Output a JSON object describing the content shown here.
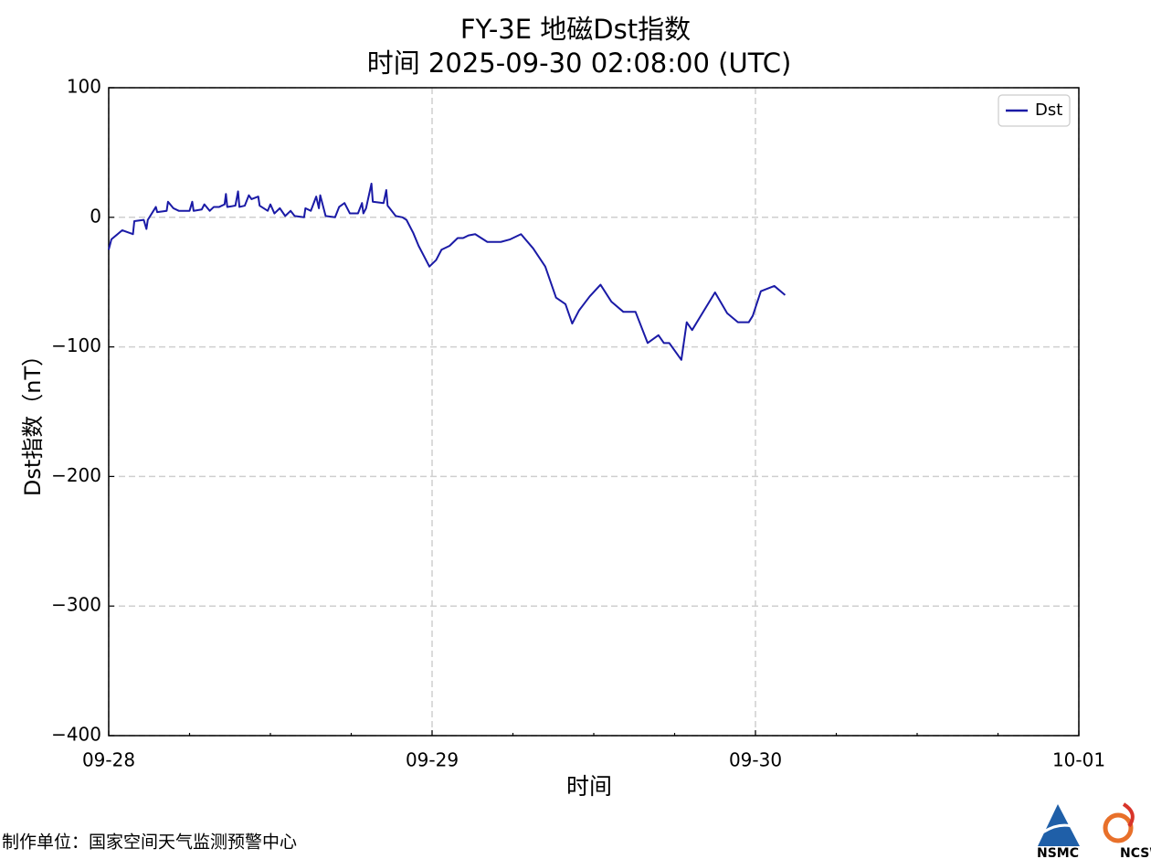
{
  "chart_data": {
    "type": "line",
    "title": "FY-3E 地磁Dst指数",
    "subtitle": "时间 2025-09-30 02:08:00 (UTC)",
    "x_label": "时间",
    "y_label": "Dst指数（nT）",
    "x": [
      0,
      0.2,
      1.0,
      1.8,
      1.9,
      2.6,
      2.8,
      2.9,
      3.5,
      3.6,
      4.3,
      4.4,
      4.8,
      5.2,
      6.0,
      6.2,
      6.3,
      6.9,
      7.1,
      7.5,
      7.8,
      8.2,
      8.6,
      8.7,
      8.8,
      9.4,
      9.6,
      9.7,
      10.1,
      10.4,
      10.6,
      11.1,
      11.2,
      11.8,
      12.0,
      12.3,
      12.7,
      13.1,
      13.5,
      13.8,
      14.5,
      14.6,
      15.0,
      15.4,
      15.6,
      15.7,
      16.1,
      16.8,
      17.1,
      17.5,
      17.9,
      18.5,
      18.8,
      18.9,
      19.1,
      19.5,
      19.6,
      20.4,
      20.6,
      20.7,
      21.3,
      21.8,
      22.1,
      22.6,
      23.0,
      23.4,
      23.8,
      24.3,
      24.7,
      25.3,
      25.9,
      26.3,
      26.7,
      27.2,
      28.1,
      29.1,
      29.8,
      30.6,
      31.5,
      32.4,
      33.2,
      33.9,
      34.4,
      34.9,
      35.7,
      36.5,
      37.3,
      38.2,
      39.1,
      40.0,
      40.8,
      41.2,
      41.6,
      42.5,
      42.9,
      43.3,
      45.0,
      45.9,
      46.7,
      47.5,
      47.8,
      48.4,
      49.4,
      50.2
    ],
    "series": [
      {
        "name": "Dst",
        "color": "#1a1aa6",
        "values": [
          -25,
          -17,
          -10,
          -13,
          -3,
          -2,
          -9,
          -2,
          8,
          4,
          5,
          12,
          7,
          5,
          5,
          12,
          5,
          6,
          10,
          5,
          8,
          8,
          10,
          18,
          8,
          9,
          20,
          8,
          9,
          17,
          14,
          16,
          9,
          5,
          10,
          3,
          7,
          1,
          5,
          1,
          0,
          7,
          5,
          16,
          7,
          17,
          1,
          0,
          8,
          11,
          3,
          3,
          11,
          3,
          7,
          26,
          12,
          11,
          21,
          9,
          1,
          0,
          -2,
          -12,
          -22,
          -30,
          -38,
          -33,
          -25,
          -22,
          -16,
          -16,
          -14,
          -13,
          -19,
          -19,
          -17,
          -13,
          -24,
          -38,
          -62,
          -67,
          -82,
          -72,
          -61,
          -52,
          -65,
          -73,
          -73,
          -97,
          -91,
          -97,
          -97,
          -110,
          -81,
          -87,
          -58,
          -74,
          -81,
          -81,
          -76,
          -57,
          -53,
          -60
        ]
      }
    ],
    "xlim": [
      0,
      72
    ],
    "xticks": [
      {
        "value": 0,
        "label": "09-28"
      },
      {
        "value": 24,
        "label": "09-29"
      },
      {
        "value": 48,
        "label": "09-30"
      },
      {
        "value": 72,
        "label": "10-01"
      }
    ],
    "xminorticks": [
      6,
      12,
      18,
      30,
      36,
      42,
      54,
      60,
      66
    ],
    "ylim": [
      -400,
      100
    ],
    "yticks": [
      {
        "value": -400,
        "label": "−400"
      },
      {
        "value": -300,
        "label": "−300"
      },
      {
        "value": -200,
        "label": "−200"
      },
      {
        "value": -100,
        "label": "−100"
      },
      0,
      100
    ],
    "grid": true,
    "legend_position": "upper right"
  },
  "footer": {
    "producer": "制作单位：国家空间天气监测预警中心",
    "logos": [
      "NSMC",
      "NCSW"
    ]
  }
}
